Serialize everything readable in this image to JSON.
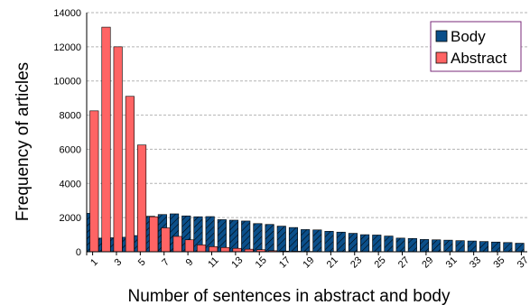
{
  "chart_data": {
    "type": "bar",
    "title": "",
    "xlabel": "Number of sentences in abstract and body",
    "ylabel": "Frequency of articles",
    "ylim": [
      0,
      14000
    ],
    "yticks": [
      0,
      2000,
      4000,
      6000,
      8000,
      10000,
      12000,
      14000
    ],
    "grid": "horizontal dashed",
    "legend_position": "top-right",
    "categories": [
      1,
      2,
      3,
      4,
      5,
      6,
      7,
      8,
      9,
      10,
      11,
      12,
      13,
      14,
      15,
      16,
      17,
      18,
      19,
      20,
      21,
      22,
      23,
      24,
      25,
      26,
      27,
      28,
      29,
      30,
      31,
      32,
      33,
      34,
      35,
      36,
      37
    ],
    "xtick_labels": [
      "1",
      "3",
      "5",
      "7",
      "9",
      "11",
      "13",
      "15",
      "17",
      "19",
      "21",
      "23",
      "25",
      "27",
      "29",
      "31",
      "33",
      "35",
      "37"
    ],
    "series": [
      {
        "name": "Body",
        "color": "#0b4f8a",
        "pattern": "hatched",
        "values": [
          2250,
          800,
          820,
          850,
          950,
          2080,
          2180,
          2220,
          2100,
          2050,
          2060,
          1880,
          1850,
          1800,
          1650,
          1600,
          1500,
          1420,
          1300,
          1280,
          1200,
          1150,
          1080,
          1000,
          980,
          920,
          800,
          780,
          720,
          700,
          680,
          650,
          630,
          600,
          570,
          540,
          500
        ]
      },
      {
        "name": "Abstract",
        "color": "#ff6464",
        "values": [
          8250,
          13150,
          12000,
          9100,
          6250,
          2050,
          1400,
          900,
          700,
          400,
          300,
          250,
          200,
          150,
          120,
          60,
          40,
          30,
          20,
          10,
          10,
          5,
          5,
          0,
          0,
          0,
          0,
          0,
          0,
          0,
          0,
          0,
          0,
          0,
          0,
          0,
          0
        ]
      }
    ]
  }
}
